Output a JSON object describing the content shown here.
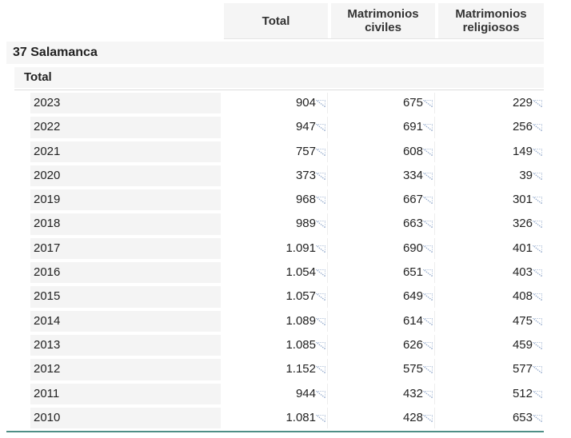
{
  "header": {
    "total": "Total",
    "civil_line1": "Matrimonios",
    "civil_line2": "civiles",
    "religious_line1": "Matrimonios",
    "religious_line2": "religiosos"
  },
  "province": "37 Salamanca",
  "subgroup": "Total",
  "colors": {
    "bottom_rule": "#4f8f86",
    "note_icon": "#8fa6c9"
  },
  "rows": [
    {
      "year": "2023",
      "total": "904",
      "civiles": "675",
      "religiosos": "229"
    },
    {
      "year": "2022",
      "total": "947",
      "civiles": "691",
      "religiosos": "256"
    },
    {
      "year": "2021",
      "total": "757",
      "civiles": "608",
      "religiosos": "149"
    },
    {
      "year": "2020",
      "total": "373",
      "civiles": "334",
      "religiosos": "39"
    },
    {
      "year": "2019",
      "total": "968",
      "civiles": "667",
      "religiosos": "301"
    },
    {
      "year": "2018",
      "total": "989",
      "civiles": "663",
      "religiosos": "326"
    },
    {
      "year": "2017",
      "total": "1.091",
      "civiles": "690",
      "religiosos": "401"
    },
    {
      "year": "2016",
      "total": "1.054",
      "civiles": "651",
      "religiosos": "403"
    },
    {
      "year": "2015",
      "total": "1.057",
      "civiles": "649",
      "religiosos": "408"
    },
    {
      "year": "2014",
      "total": "1.089",
      "civiles": "614",
      "religiosos": "475"
    },
    {
      "year": "2013",
      "total": "1.085",
      "civiles": "626",
      "religiosos": "459"
    },
    {
      "year": "2012",
      "total": "1.152",
      "civiles": "575",
      "religiosos": "577"
    },
    {
      "year": "2011",
      "total": "944",
      "civiles": "432",
      "religiosos": "512"
    },
    {
      "year": "2010",
      "total": "1.081",
      "civiles": "428",
      "religiosos": "653"
    }
  ]
}
